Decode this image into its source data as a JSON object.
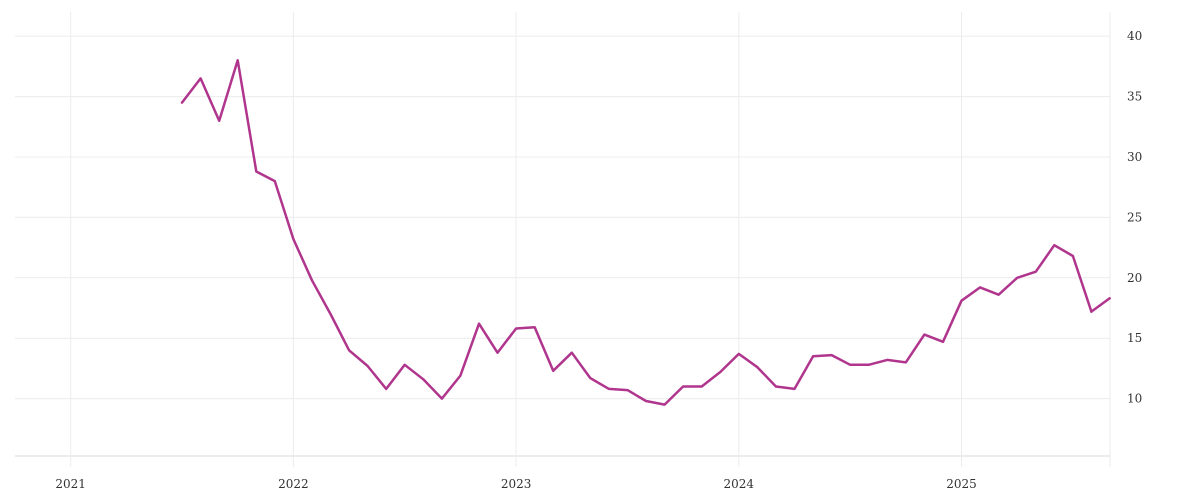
{
  "chart_data": {
    "type": "line",
    "title": "",
    "xlabel": "",
    "ylabel": "",
    "grid": true,
    "legend": "none",
    "y_axis_position": "right",
    "xlim": [
      "2020-10-01",
      "2025-09-01"
    ],
    "ylim": [
      5,
      42
    ],
    "x_ticks": [
      "2021",
      "2022",
      "2023",
      "2024",
      "2025"
    ],
    "y_ticks": [
      10,
      15,
      20,
      25,
      30,
      35,
      40
    ],
    "colors": {
      "series": "#b0358d",
      "grid": "#ececec"
    },
    "series": [
      {
        "x": [
          "2021-07",
          "2021-08",
          "2021-09",
          "2021-10",
          "2021-11",
          "2021-12",
          "2022-01",
          "2022-02",
          "2022-03",
          "2022-04",
          "2022-05",
          "2022-06",
          "2022-07",
          "2022-08",
          "2022-09",
          "2022-10",
          "2022-11",
          "2022-12",
          "2023-01",
          "2023-02",
          "2023-03",
          "2023-04",
          "2023-05",
          "2023-06",
          "2023-07",
          "2023-08",
          "2023-09",
          "2023-10",
          "2023-11",
          "2023-12",
          "2024-01",
          "2024-02",
          "2024-03",
          "2024-04",
          "2024-05",
          "2024-06",
          "2024-07",
          "2024-08",
          "2024-09",
          "2024-10",
          "2024-11",
          "2024-12",
          "2025-01",
          "2025-02",
          "2025-03",
          "2025-04",
          "2025-05",
          "2025-06",
          "2025-07",
          "2025-08"
        ],
        "values": [
          34.5,
          36.5,
          33.0,
          38.0,
          28.8,
          28.0,
          23.2,
          19.8,
          17.0,
          14.0,
          12.7,
          10.8,
          12.8,
          11.6,
          10.0,
          11.9,
          16.2,
          13.8,
          15.8,
          15.9,
          12.3,
          13.8,
          11.7,
          10.8,
          10.7,
          9.8,
          9.5,
          11.0,
          11.0,
          12.2,
          13.7,
          12.6,
          11.0,
          10.8,
          13.5,
          13.6,
          12.8,
          12.8,
          13.2,
          13.0,
          15.3,
          14.7,
          18.1,
          19.2,
          18.6,
          20.0,
          20.5,
          22.7,
          21.8,
          17.2
        ]
      },
      {
        "x": [
          "2025-08",
          "2025-08-31"
        ],
        "values": [
          17.2,
          18.3
        ]
      }
    ]
  }
}
